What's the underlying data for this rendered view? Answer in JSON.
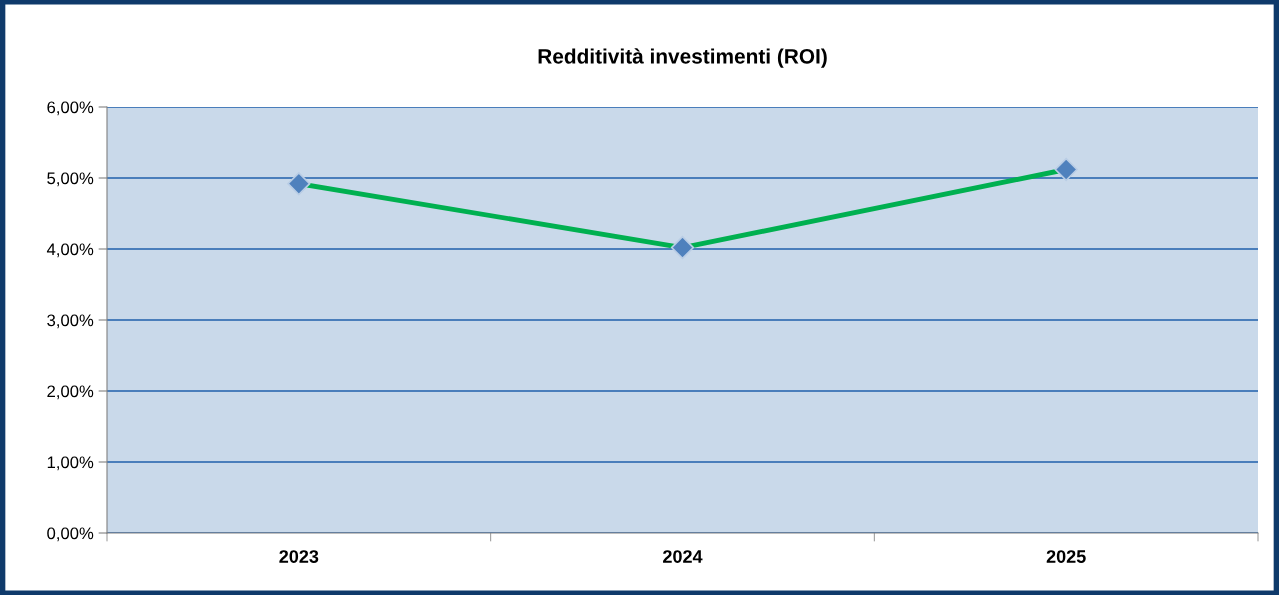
{
  "chart_data": {
    "type": "line",
    "title": "Redditività investimenti (ROI)",
    "categories": [
      "2023",
      "2024",
      "2025"
    ],
    "series": [
      {
        "color": "#00b050",
        "values": [
          4.92,
          4.02,
          5.12
        ]
      }
    ],
    "marker": "diamond",
    "line_style": "solid",
    "ylim": [
      0,
      6
    ],
    "yticks": [
      {
        "value": 0,
        "label": "0,00%"
      },
      {
        "value": 1,
        "label": "1,00%"
      },
      {
        "value": 2,
        "label": "2,00%"
      },
      {
        "value": 3,
        "label": "3,00%"
      },
      {
        "value": 4,
        "label": "4,00%"
      },
      {
        "value": 5,
        "label": "5,00%"
      },
      {
        "value": 6,
        "label": "6,00%"
      }
    ],
    "grid": "y",
    "legend": false
  }
}
